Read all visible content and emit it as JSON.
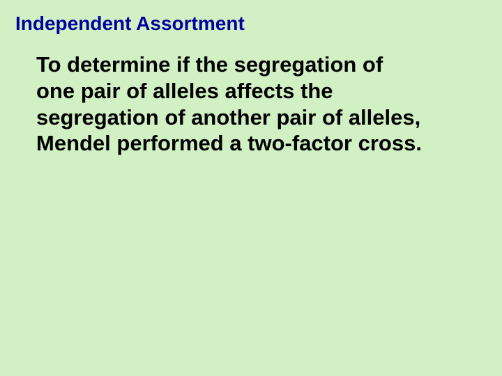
{
  "slide": {
    "title": "Independent Assortment",
    "body": "To determine if the segregation of one pair of alleles affects the segregation of another pair of alleles, Mendel performed a two-factor cross.",
    "background_color": "#d1f0c4",
    "title_color": "#00029e",
    "body_color": "#000000",
    "title_fontsize": 28,
    "body_fontsize": 31,
    "font_family": "Arial",
    "font_weight": "bold"
  }
}
